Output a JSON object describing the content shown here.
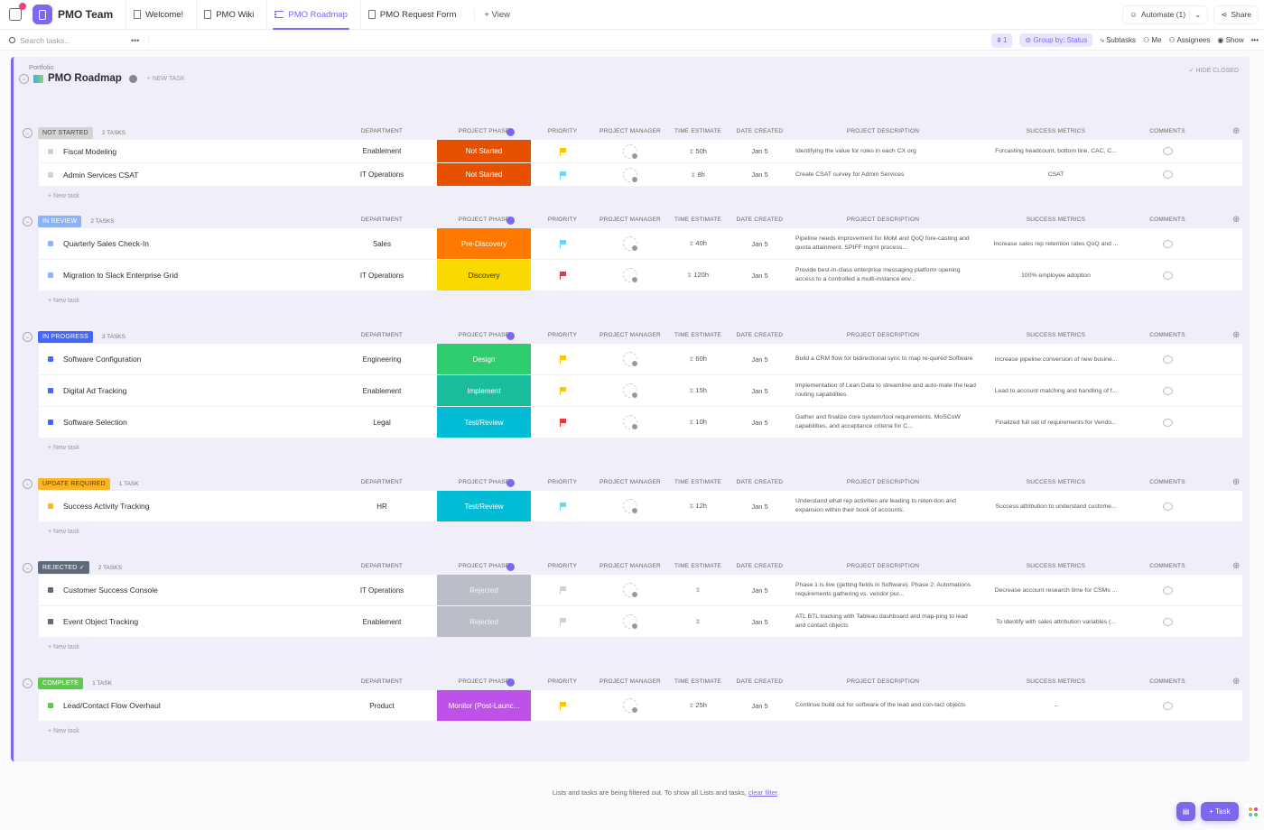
{
  "topbar": {
    "space_name": "PMO Team",
    "tabs": [
      {
        "label": "Welcome!",
        "active": false
      },
      {
        "label": "PMO Wiki",
        "active": false
      },
      {
        "label": "PMO Roadmap",
        "active": true
      },
      {
        "label": "PMO Request Form",
        "active": false
      }
    ],
    "add_view": "+ View",
    "automate": "Automate (1)",
    "share": "Share"
  },
  "toolbar": {
    "search_placeholder": "Search tasks...",
    "filter_count": "1",
    "group_by": "Group by: Status",
    "subtasks": "Subtasks",
    "me": "Me",
    "assignees": "Assignees",
    "show": "Show"
  },
  "list": {
    "breadcrumb": "Portfolio",
    "title": "PMO Roadmap",
    "new_task": "+ NEW TASK",
    "hide_closed": "✓ HIDE CLOSED"
  },
  "columns": {
    "department": "DEPARTMENT",
    "phase": "PROJECT PHASE",
    "priority": "PRIORITY",
    "manager": "PROJECT MANAGER",
    "time": "TIME ESTIMATE",
    "date": "DATE CREATED",
    "description": "PROJECT DESCRIPTION",
    "metrics": "SUCCESS METRICS",
    "comments": "COMMENTS"
  },
  "new_task_row": "+ New task",
  "colors": {
    "accent": "#7b68ee",
    "flag_yellow": "#f8c900",
    "flag_cyan": "#6fd4f0",
    "flag_red": "#e8383d",
    "flag_gray": "#d0d0d0"
  },
  "groups": [
    {
      "status": "NOT STARTED",
      "count": "2 TASKS",
      "color": "#d3d3d3",
      "text_color": "#444",
      "tall": false,
      "tasks": [
        {
          "name": "Fiscal Modeling",
          "department": "Enablement",
          "phase": "Not Started",
          "phase_color": "#e65100",
          "priority": "yellow",
          "time": "50h",
          "date": "Jan 5",
          "description": "Identifying the value for roles in each CX org",
          "metrics": "Forcasting headcount, bottom line, CAC, C..."
        },
        {
          "name": "Admin Services CSAT",
          "department": "IT Operations",
          "phase": "Not Started",
          "phase_color": "#e65100",
          "priority": "cyan",
          "time": "8h",
          "date": "Jan 5",
          "description": "Create CSAT survey for Admin Services",
          "metrics": "CSAT"
        }
      ]
    },
    {
      "status": "IN REVIEW",
      "count": "2 TASKS",
      "color": "#8ab4f8",
      "text_color": "#fff",
      "tall": true,
      "tasks": [
        {
          "name": "Quarterly Sales Check-In",
          "department": "Sales",
          "phase": "Pre-Discovery",
          "phase_color": "#ff7800",
          "priority": "cyan",
          "time": "40h",
          "date": "Jan 5",
          "description": "Pipeline needs improvement for MoM and QoQ fore-casting and quota attainment.  SPIFF mgmt process...",
          "metrics": "Increase sales rep retention rates QoQ and ..."
        },
        {
          "name": "Migration to Slack Enterprise Grid",
          "department": "IT Operations",
          "phase": "Discovery",
          "phase_color": "#f9d900",
          "phase_text": "#2a2e34",
          "priority": "red",
          "time": "120h",
          "date": "Jan 5",
          "description": "Provide best-in-class enterprise messaging platform opening access to a controlled a multi-instance env...",
          "metrics": "100% employee adoption"
        }
      ]
    },
    {
      "status": "IN PROGRESS",
      "count": "3 TASKS",
      "color": "#4466ff",
      "text_color": "#fff",
      "tall": true,
      "tasks": [
        {
          "name": "Software Configuration",
          "department": "Engineering",
          "phase": "Design",
          "phase_color": "#2ecd6f",
          "priority": "yellow",
          "time": "60h",
          "date": "Jan 5",
          "description": "Build a CRM flow for bidirectional sync to map re-quired Software",
          "metrics": "Increase pipeline conversion of new busine..."
        },
        {
          "name": "Digital Ad Tracking",
          "department": "Enablement",
          "phase": "Implement",
          "phase_color": "#1bbc9c",
          "priority": "yellow",
          "time": "15h",
          "date": "Jan 5",
          "description": "Implementation of Lean Data to streamline and auto-mate the lead routing capabilities.",
          "metrics": "Lead to account matching and handling of f..."
        },
        {
          "name": "Software Selection",
          "department": "Legal",
          "phase": "Test/Review",
          "phase_color": "#00bcd4",
          "priority": "red",
          "time": "10h",
          "date": "Jan 5",
          "description": "Gather and finalize core system/tool requirements, MoSCoW capabilities, and acceptance criteria for C...",
          "metrics": "Finalized full set of requirements for Vendo..."
        }
      ]
    },
    {
      "status": "UPDATE REQUIRED",
      "count": "1 TASK",
      "color": "#fbb526",
      "text_color": "#5a3c00",
      "tall": true,
      "tasks": [
        {
          "name": "Success Activity Tracking",
          "department": "HR",
          "phase": "Test/Review",
          "phase_color": "#00bcd4",
          "priority": "cyan",
          "time": "12h",
          "date": "Jan 5",
          "description": "Understand what rep activities are leading to reten-tion and expansion within their book of accounts.",
          "metrics": "Success attribution to understand custome..."
        }
      ]
    },
    {
      "status": "REJECTED ✓",
      "count": "2 TASKS",
      "color": "#5f6b7a",
      "text_color": "#fff",
      "tall": true,
      "tasks": [
        {
          "name": "Customer Success Console",
          "department": "IT Operations",
          "phase": "Rejected",
          "phase_color": "#b9bec7",
          "priority": "gray",
          "time": "",
          "date": "Jan 5",
          "description": "Phase 1 is live (getting fields in Software).  Phase 2: Automations requirements gathering vs. vendor pur...",
          "metrics": "Decrease account research time for CSMs ..."
        },
        {
          "name": "Event Object Tracking",
          "department": "Enablement",
          "phase": "Rejected",
          "phase_color": "#b9bec7",
          "priority": "gray",
          "time": "",
          "date": "Jan 5",
          "description": "ATL BTL tracking with Tableau dashboard and map-ping to lead and contact objects",
          "metrics": "To identify with sales attribution variables (..."
        }
      ]
    },
    {
      "status": "COMPLETE",
      "count": "1 TASK",
      "color": "#5ccb4a",
      "text_color": "#fff",
      "tall": true,
      "tasks": [
        {
          "name": "Lead/Contact Flow Overhaul",
          "department": "Product",
          "phase": "Monitor (Post-Launc...",
          "phase_color": "#bd51e8",
          "priority": "yellow",
          "time": "25h",
          "date": "Jan 5",
          "description": "Continue build out for software of the lead and con-tact objects",
          "metrics": "–"
        }
      ]
    }
  ],
  "footer": {
    "message": "Lists and tasks are being filtered out. To show all Lists and tasks, ",
    "link": "clear filter",
    "period": "."
  },
  "fab": {
    "task": "+ Task"
  }
}
